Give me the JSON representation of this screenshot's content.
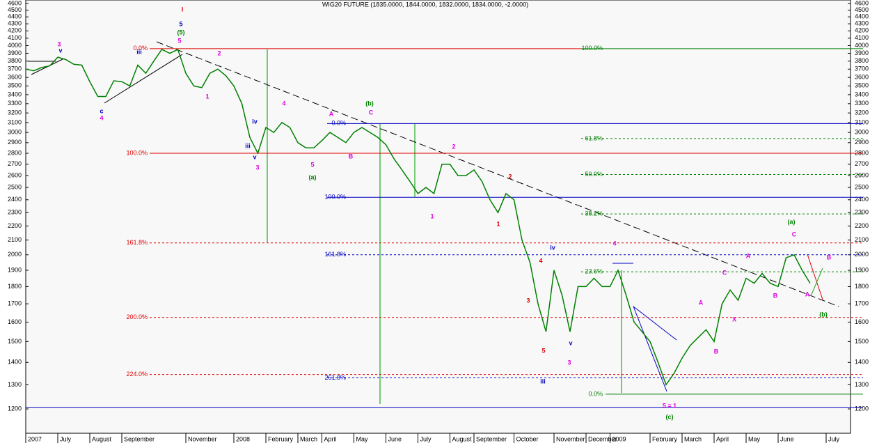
{
  "chart_data": {
    "type": "line",
    "title": "WIG20 FUTURE (1835.0000, 1844.0000, 1832.0000, 1834.0000, -2.0000)",
    "log_scale": true,
    "ylim": [
      1107,
      4653
    ],
    "yticks": [
      1200,
      1300,
      1400,
      1500,
      1600,
      1700,
      1800,
      1900,
      2000,
      2100,
      2200,
      2300,
      2400,
      2500,
      2600,
      2700,
      2800,
      2900,
      3000,
      3100,
      3200,
      3300,
      3400,
      3500,
      3600,
      3700,
      3800,
      3900,
      4000,
      4100,
      4200,
      4300,
      4400,
      4500,
      4600
    ],
    "categories": [
      "2007",
      null,
      null,
      null,
      "July",
      null,
      null,
      null,
      "August",
      null,
      null,
      null,
      "September",
      null,
      null,
      null,
      null,
      null,
      null,
      null,
      "November",
      null,
      null,
      null,
      null,
      null,
      "2008",
      null,
      null,
      null,
      "February",
      null,
      null,
      null,
      "March",
      null,
      null,
      "April",
      null,
      null,
      null,
      "May",
      null,
      null,
      null,
      "June",
      null,
      null,
      null,
      "July",
      null,
      null,
      null,
      "August",
      null,
      null,
      "September",
      null,
      null,
      null,
      null,
      "October",
      null,
      null,
      null,
      null,
      "November",
      null,
      null,
      null,
      "December",
      null,
      null,
      "2009",
      null,
      null,
      null,
      null,
      "February",
      null,
      null,
      null,
      "March",
      null,
      null,
      null,
      "April",
      null,
      null,
      null,
      "May",
      null,
      null,
      null,
      "June",
      null,
      null,
      null,
      null,
      null,
      "July"
    ],
    "series": [
      {
        "color": "#008000",
        "values": [
          3700,
          3680,
          3720,
          3740,
          3850,
          3820,
          3760,
          3750,
          3550,
          3380,
          3380,
          3560,
          3550,
          3500,
          3750,
          3650,
          3800,
          3950,
          3900,
          3950,
          3650,
          3500,
          3480,
          3650,
          3700,
          3620,
          3500,
          3300,
          2950,
          2800,
          3050,
          3000,
          3100,
          3050,
          2900,
          2850,
          2850,
          2920,
          3000,
          2950,
          2900,
          3000,
          3050,
          3000,
          2950,
          2880,
          2750,
          2650,
          2550,
          2450,
          2500,
          2450,
          2700,
          2700,
          2600,
          2600,
          2650,
          2550,
          2400,
          2300,
          2450,
          2400,
          2100,
          1950,
          1700,
          1550,
          1900,
          1750,
          1550,
          1800,
          1800,
          1850,
          1800,
          1800,
          1900,
          1750,
          1600,
          1550,
          1500,
          1400,
          1300,
          1350,
          1420,
          1480,
          1520,
          1560,
          1500,
          1700,
          1780,
          1720,
          1850,
          1820,
          1880,
          1820,
          1800,
          1980,
          2000,
          1900,
          1820,
          null,
          null
        ]
      }
    ],
    "levels": [
      {
        "label": "0.0%",
        "value": 3960,
        "color": "#e00000",
        "style": "solid"
      },
      {
        "label": "100.0%",
        "value": 3960,
        "color": "#008000",
        "style": "solid"
      },
      {
        "label": "0.0%",
        "value": 3090,
        "color": "#0000c0",
        "style": "solid"
      },
      {
        "label": "61.8%",
        "value": 2940,
        "color": "#008000",
        "style": "dashed"
      },
      {
        "label": "100.0%",
        "value": 2800,
        "color": "#e00000",
        "style": "solid"
      },
      {
        "label": "50.0%",
        "value": 2610,
        "color": "#008000",
        "style": "dashed"
      },
      {
        "label": "100.0%",
        "value": 2420,
        "color": "#0000c0",
        "style": "solid"
      },
      {
        "label": "38.2%",
        "value": 2290,
        "color": "#008000",
        "style": "dashed"
      },
      {
        "label": "161.8%",
        "value": 2080,
        "color": "#e00000",
        "style": "dashed"
      },
      {
        "label": "161.8%",
        "value": 2000,
        "color": "#0000c0",
        "style": "dashed"
      },
      {
        "label": "23.6%",
        "value": 1890,
        "color": "#008000",
        "style": "dashed"
      },
      {
        "label": "200.0%",
        "value": 1625,
        "color": "#e00000",
        "style": "dashed"
      },
      {
        "label": "224.0%",
        "value": 1345,
        "color": "#e00000",
        "style": "dashed"
      },
      {
        "label": "261.8%",
        "value": 1330,
        "color": "#0000c0",
        "style": "dashed"
      },
      {
        "label": "0.0%",
        "value": 1260,
        "color": "#008000",
        "style": "solid"
      },
      {
        "value": 1205,
        "color": "#0000c0",
        "style": "solid"
      }
    ],
    "annotations": [
      {
        "text": "I",
        "color": "#e00000"
      },
      {
        "text": "5",
        "color": "#0000c0"
      },
      {
        "text": "(5)",
        "color": "#008000"
      },
      {
        "text": "5",
        "color": "#e000e0"
      },
      {
        "text": "3",
        "color": "#e000e0"
      },
      {
        "text": "v",
        "color": "#0000c0"
      },
      {
        "text": "c",
        "color": "#0000c0"
      },
      {
        "text": "4",
        "color": "#e000e0"
      },
      {
        "text": "iii",
        "color": "#0000c0"
      },
      {
        "text": "2",
        "color": "#e000e0"
      },
      {
        "text": "1",
        "color": "#e000e0"
      },
      {
        "text": "4",
        "color": "#e000e0"
      },
      {
        "text": "iv",
        "color": "#0000c0"
      },
      {
        "text": "iii",
        "color": "#0000c0"
      },
      {
        "text": "v",
        "color": "#0000c0"
      },
      {
        "text": "3",
        "color": "#e000e0"
      },
      {
        "text": "5",
        "color": "#e000e0"
      },
      {
        "text": "(a)",
        "color": "#008000"
      },
      {
        "text": "A",
        "color": "#e000e0"
      },
      {
        "text": "(b)",
        "color": "#008000"
      },
      {
        "text": "C",
        "color": "#e000e0"
      },
      {
        "text": "B",
        "color": "#e000e0"
      },
      {
        "text": "2",
        "color": "#e000e0"
      },
      {
        "text": "1",
        "color": "#e000e0"
      },
      {
        "text": "1",
        "color": "#e00000"
      },
      {
        "text": "2",
        "color": "#e00000"
      },
      {
        "text": "4",
        "color": "#e00000"
      },
      {
        "text": "3",
        "color": "#e00000"
      },
      {
        "text": "5",
        "color": "#e00000"
      },
      {
        "text": "3",
        "color": "#e000e0"
      },
      {
        "text": "iii",
        "color": "#0000c0"
      },
      {
        "text": "iv",
        "color": "#0000c0"
      },
      {
        "text": "v",
        "color": "#0000c0"
      },
      {
        "text": "4",
        "color": "#e000e0"
      },
      {
        "text": "5 = 1",
        "color": "#e000e0"
      },
      {
        "text": "(c)",
        "color": "#008000"
      },
      {
        "text": "A",
        "color": "#e000e0"
      },
      {
        "text": "B",
        "color": "#e000e0"
      },
      {
        "text": "C",
        "color": "#e000e0"
      },
      {
        "text": "X",
        "color": "#e000e0"
      },
      {
        "text": "A",
        "color": "#e000e0"
      },
      {
        "text": "B",
        "color": "#e000e0"
      },
      {
        "text": "(a)",
        "color": "#008000"
      },
      {
        "text": "C",
        "color": "#e000e0"
      },
      {
        "text": "B",
        "color": "#e000e0"
      },
      {
        "text": "A",
        "color": "#e000e0"
      },
      {
        "text": "(b)",
        "color": "#008000"
      }
    ]
  }
}
